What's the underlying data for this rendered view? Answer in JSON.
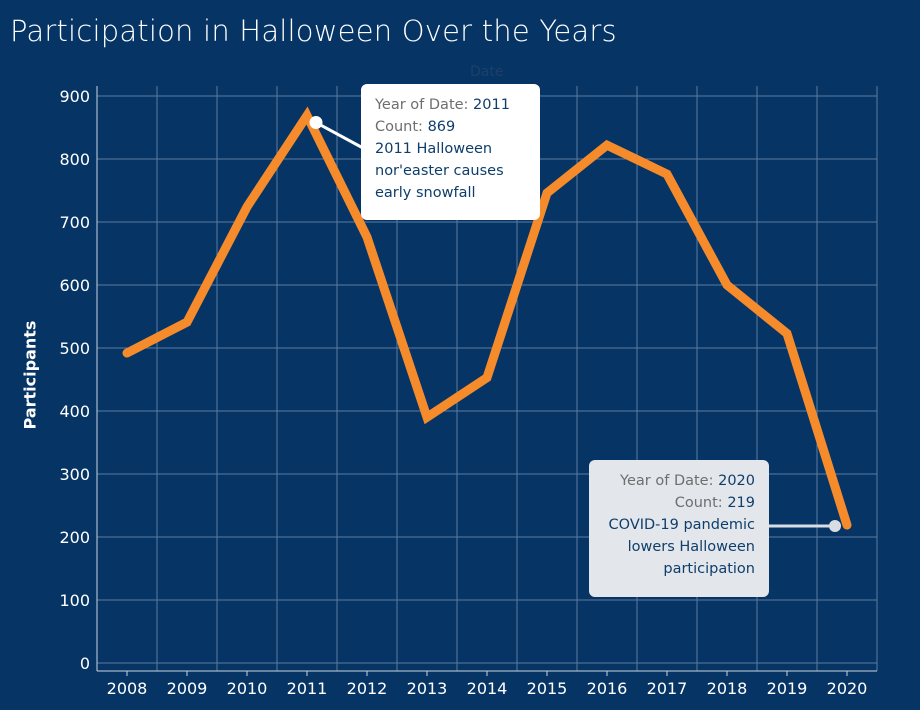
{
  "title": "Participation in Halloween Over the Years",
  "colors": {
    "background": "#063565",
    "line": "#f68b2c",
    "grid": "#5a7a9e",
    "text": "#ffffff"
  },
  "chart_data": {
    "type": "line",
    "title": "Participation in Halloween Over the Years",
    "xlabel": "Date",
    "ylabel": "Participants",
    "x": [
      2008,
      2009,
      2010,
      2011,
      2012,
      2013,
      2014,
      2015,
      2016,
      2017,
      2018,
      2019,
      2020
    ],
    "x_tick_labels": [
      "2008",
      "2009",
      "2010",
      "2011",
      "2012",
      "2013",
      "2014",
      "2015",
      "2016",
      "2017",
      "2018",
      "2019",
      "2020"
    ],
    "series": [
      {
        "values": [
          492,
          541,
          724,
          869,
          676,
          390,
          453,
          746,
          822,
          776,
          600,
          523,
          219
        ],
        "color": "#f68b2c"
      }
    ],
    "y_ticks": [
      "0",
      "100",
      "200",
      "300",
      "400",
      "500",
      "600",
      "700",
      "800",
      "900"
    ],
    "ylim": [
      0,
      900
    ],
    "grid": true,
    "annotations": [
      {
        "label_year": "Year of Date:",
        "year": "2011",
        "label_count": "Count:",
        "count": "869",
        "lines": [
          "2011 Halloween",
          "nor'easter causes",
          "early snowfall"
        ]
      },
      {
        "label_year": "Year of Date:",
        "year": "2020",
        "label_count": "Count:",
        "count": "219",
        "lines": [
          "COVID-19 pandemic",
          "lowers Halloween",
          "participation"
        ]
      }
    ]
  }
}
